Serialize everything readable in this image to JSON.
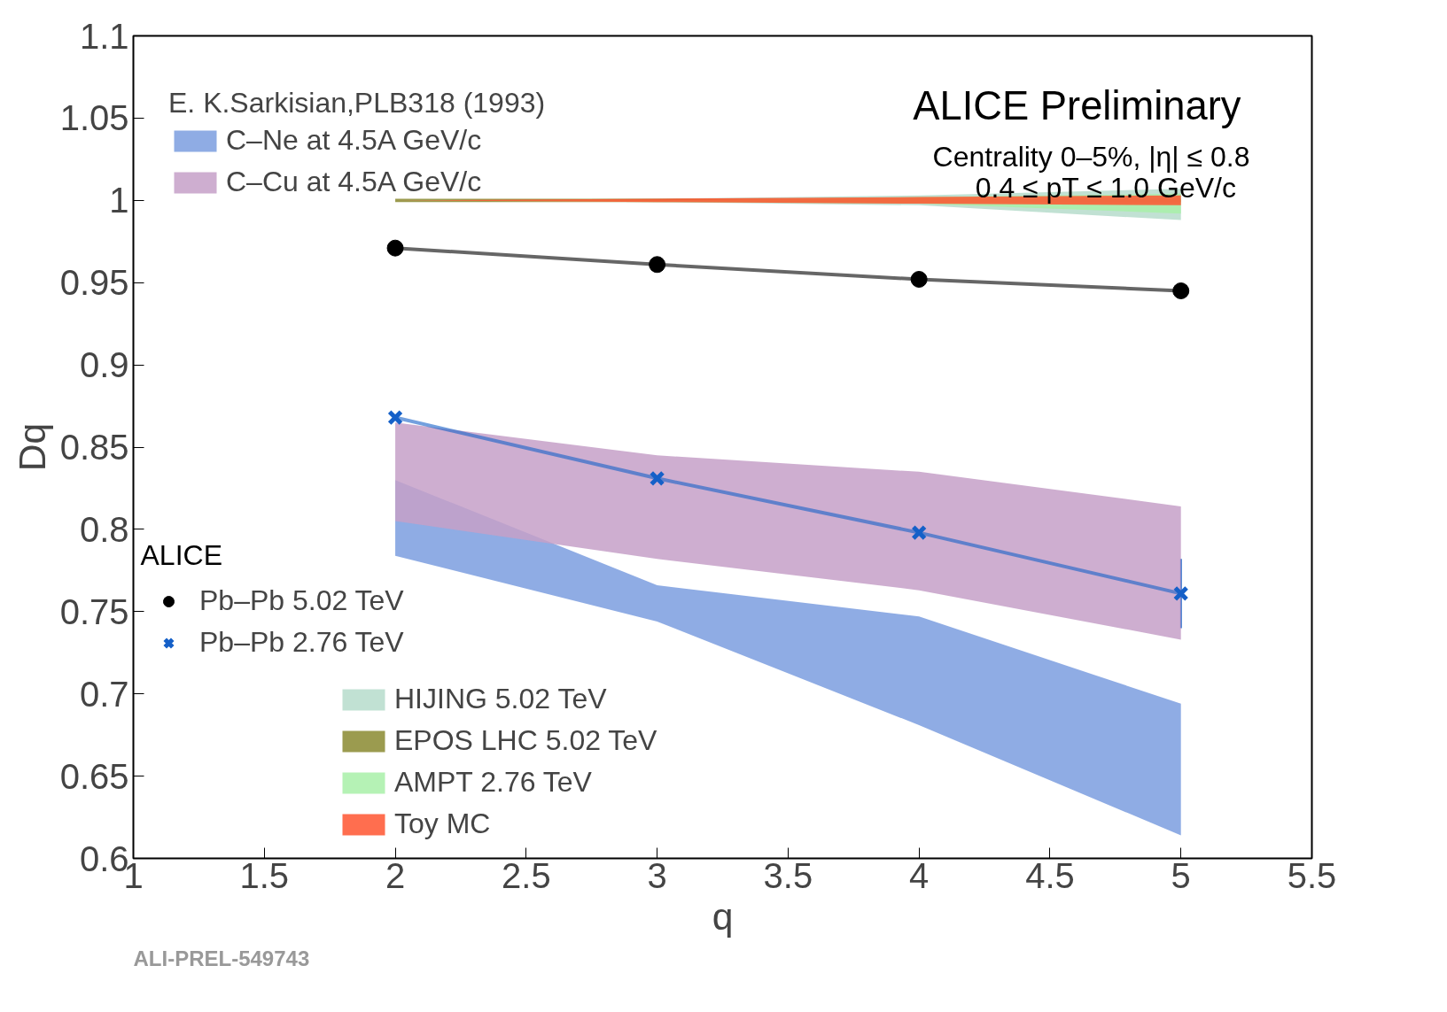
{
  "chart_data": {
    "type": "line",
    "xlabel": "q",
    "ylabel": "Dq",
    "legend_title": "E. K.Sarkisian,PLB318 (1993)",
    "legend": "left",
    "grid": false,
    "x": [
      2,
      3,
      4,
      5
    ],
    "xlim": [
      1,
      5.5
    ],
    "xticks": [
      1,
      1.5,
      2,
      2.5,
      3,
      3.5,
      4,
      4.5,
      5,
      5.5
    ],
    "ylim": [
      0.6,
      1.1
    ],
    "yticks": [
      0.6,
      0.65,
      0.7,
      0.75,
      0.8,
      0.85,
      0.9,
      0.95,
      1,
      1.05,
      1.1
    ],
    "series": [
      {
        "name": "C–Ne at 4.5A GeV/c",
        "type": "area",
        "color": "#7b9ddf",
        "values": [
          null,
          null,
          null,
          null
        ],
        "upper": [
          0.83,
          0.766,
          0.747,
          0.694
        ],
        "lower": [
          0.784,
          0.744,
          0.681,
          0.614
        ]
      },
      {
        "name": "C–Cu at 4.5A GeV/c",
        "type": "area",
        "color": "#c6a0c8",
        "values": [
          null,
          null,
          null,
          null
        ],
        "upper": [
          0.865,
          0.845,
          0.835,
          0.814
        ],
        "lower": [
          0.805,
          0.782,
          0.763,
          0.733
        ]
      },
      {
        "name": "Pb–Pb 5.02 TeV",
        "marker": "circle",
        "color": "#000000",
        "values": [
          0.971,
          0.961,
          0.952,
          0.945
        ]
      },
      {
        "name": "Pb–Pb 2.76 TeV",
        "marker": "cross",
        "color": "#1560c8",
        "values": [
          0.868,
          0.831,
          0.798,
          0.761
        ],
        "errors": [
          null,
          null,
          null,
          0.021
        ]
      },
      {
        "name": "HIJING 5.02 TeV",
        "type": "area",
        "color": "#b6dccb",
        "values": [
          null,
          null,
          null,
          null
        ],
        "upper": [
          1.0,
          1.001,
          1.003,
          1.007
        ],
        "lower": [
          1.0,
          0.999,
          0.997,
          0.988
        ]
      },
      {
        "name": "EPOS LHC 5.02 TeV",
        "type": "area",
        "color": "#8a8a30",
        "values": [
          null,
          null,
          null,
          null
        ],
        "upper": [
          1.001,
          1.001,
          1.001,
          1.001
        ],
        "lower": [
          0.999,
          0.999,
          0.999,
          0.999
        ]
      },
      {
        "name": "AMPT 2.76 TeV",
        "type": "area",
        "color": "#a8f0a8",
        "values": [
          null,
          null,
          null,
          null
        ],
        "upper": [
          1.0,
          1.0,
          1.002,
          1.004
        ],
        "lower": [
          1.0,
          0.999,
          0.998,
          0.992
        ]
      },
      {
        "name": "Toy MC",
        "type": "area",
        "color": "#ff5530",
        "values": [
          null,
          null,
          null,
          null
        ],
        "upper": [
          1.0,
          1.001,
          1.002,
          1.003
        ],
        "lower": [
          1.0,
          0.999,
          0.998,
          0.997
        ]
      }
    ],
    "annotations": [
      "ALICE Preliminary",
      "Centrality 0–5%, |η| ≤ 0.8",
      "0.4 ≤ pT ≤ 1.0 GeV/c",
      "ALICE",
      "ALI-PREL-549743"
    ]
  }
}
